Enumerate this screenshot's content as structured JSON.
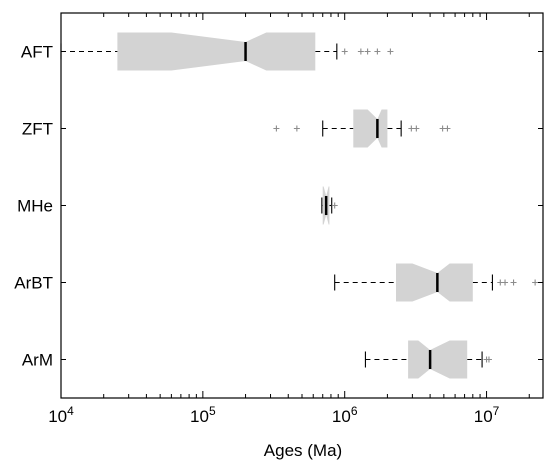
{
  "chart_data": {
    "type": "boxplot",
    "orientation": "horizontal",
    "notched": true,
    "xscale": "log",
    "xlim": [
      10000,
      25000000
    ],
    "xlabel": "Ages (Ma)",
    "ylabel": "",
    "title": "",
    "grid": false,
    "x_ticks": [
      {
        "value": 10000,
        "base": "10",
        "exp": "4"
      },
      {
        "value": 100000,
        "base": "10",
        "exp": "5"
      },
      {
        "value": 1000000,
        "base": "10",
        "exp": "6"
      },
      {
        "value": 10000000,
        "base": "10",
        "exp": "7"
      }
    ],
    "colors": {
      "box_fill": "#d3d3d3",
      "median": "#000000",
      "whisker": "#000000",
      "outlier": "#8c8c8c",
      "axis": "#000000"
    },
    "categories": [
      "AFT",
      "ZFT",
      "MHe",
      "ArBT",
      "ArM"
    ],
    "boxes": [
      {
        "label": "AFT",
        "whisker_low": 10000,
        "q1": 25000,
        "notch_low": 60000,
        "median": 200000,
        "notch_high": 280000,
        "q3": 620000,
        "whisker_high": 880000,
        "outliers": [
          1000000,
          1300000,
          1450000,
          1700000,
          2100000
        ]
      },
      {
        "label": "ZFT",
        "whisker_low": 700000,
        "q1": 1150000,
        "notch_low": 1450000,
        "median": 1700000,
        "notch_high": 1820000,
        "q3": 2000000,
        "whisker_high": 2500000,
        "outliers": [
          330000,
          460000,
          2950000,
          3200000,
          4900000,
          5300000
        ]
      },
      {
        "label": "MHe",
        "whisker_low": 690000,
        "q1": 700000,
        "notch_low": 710000,
        "median": 740000,
        "notch_high": 770000,
        "q3": 780000,
        "whisker_high": 810000,
        "outliers": [
          850000
        ]
      },
      {
        "label": "ArBT",
        "whisker_low": 850000,
        "q1": 2300000,
        "notch_low": 3000000,
        "median": 4500000,
        "notch_high": 5500000,
        "q3": 8000000,
        "whisker_high": 11000000,
        "outliers": [
          12500000,
          13500000,
          15500000,
          22000000
        ]
      },
      {
        "label": "ArM",
        "whisker_low": 1400000,
        "q1": 2800000,
        "notch_low": 3300000,
        "median": 4000000,
        "notch_high": 5500000,
        "q3": 7300000,
        "whisker_high": 9300000,
        "outliers": [
          10000000,
          10400000
        ]
      }
    ]
  }
}
